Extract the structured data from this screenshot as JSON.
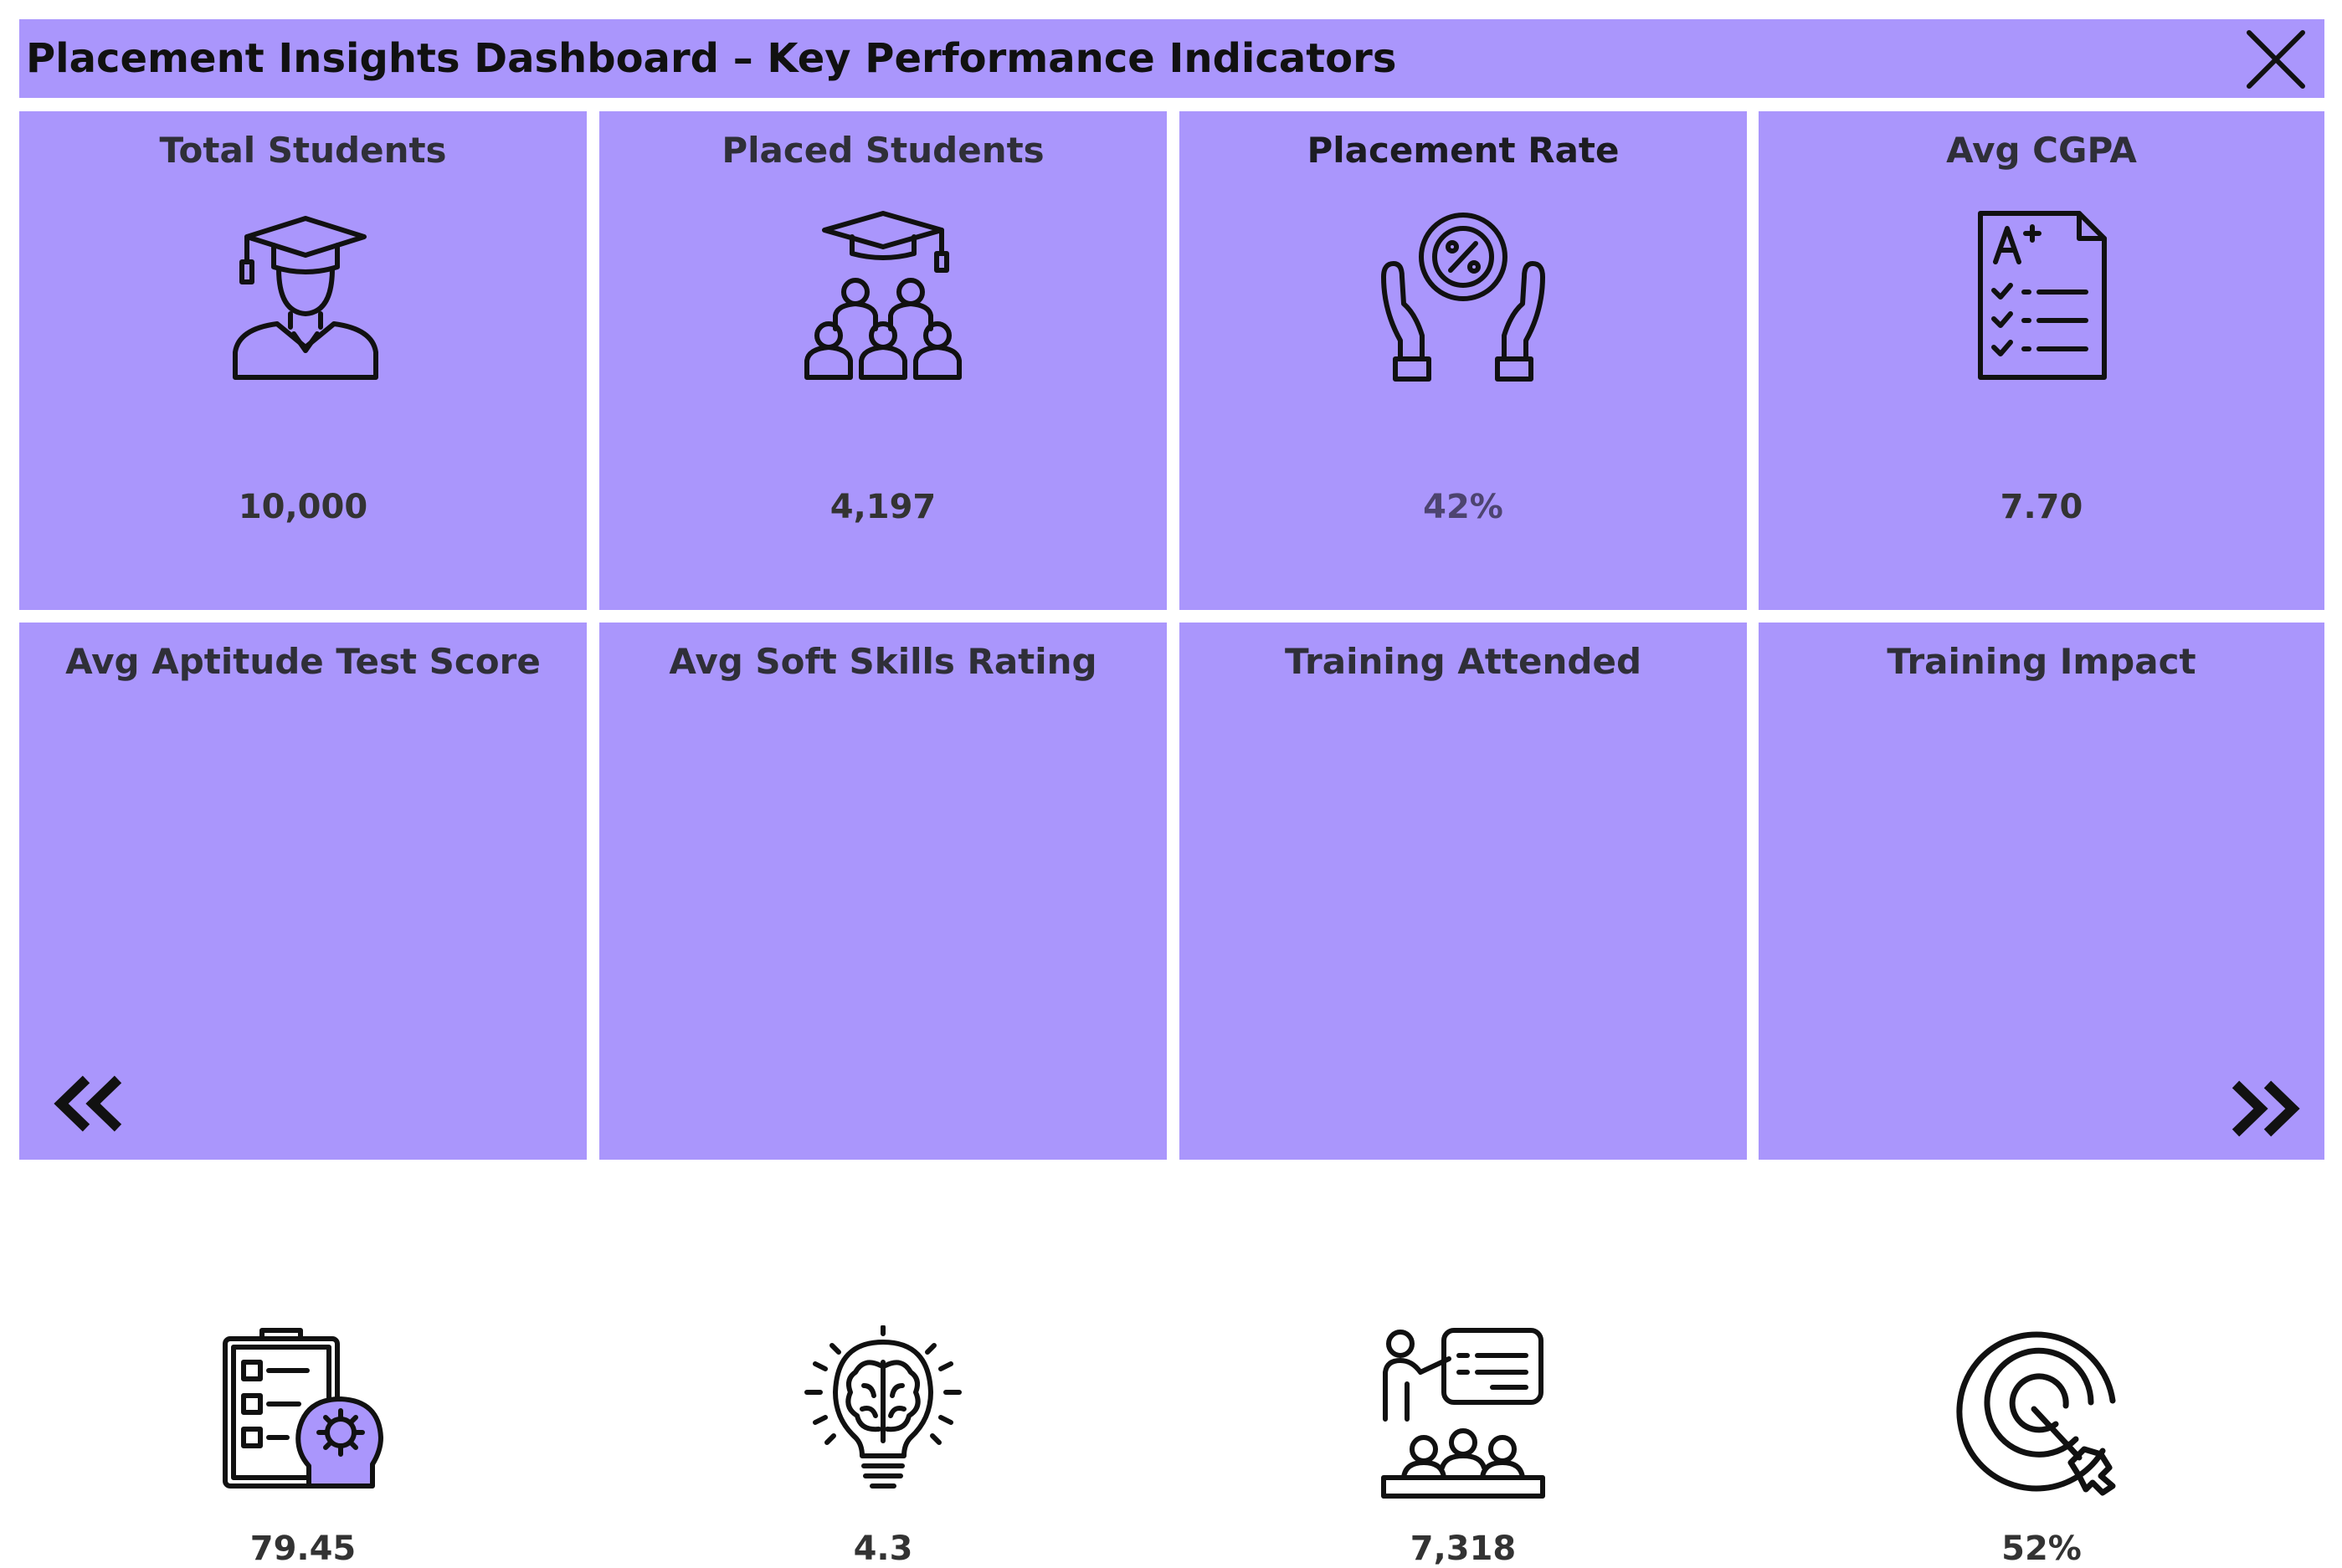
{
  "header": {
    "title": "Placement Insights Dashboard – Key Performance Indicators"
  },
  "colors": {
    "tile_bg": "#aa96fc",
    "text": "#2f2f38",
    "icon": "#111111"
  },
  "kpis": [
    {
      "title": "Total Students",
      "value": "10,000",
      "icon": "graduate-student-icon"
    },
    {
      "title": "Placed Students",
      "value": "4,197",
      "icon": "group-graduates-icon"
    },
    {
      "title": "Placement Rate",
      "value": "42%",
      "icon": "hands-percent-icon"
    },
    {
      "title": "Avg CGPA",
      "value": "7.70",
      "icon": "grade-document-icon"
    },
    {
      "title": "Avg Aptitude Test Score",
      "value": "79.45",
      "icon": "clipboard-head-gear-icon"
    },
    {
      "title": "Avg Soft Skills Rating",
      "value": "4.3",
      "icon": "brain-bulb-icon"
    },
    {
      "title": "Training Attended",
      "value": "7,318",
      "icon": "training-presentation-icon"
    },
    {
      "title": "Training Impact",
      "value": "52%",
      "icon": "target-icon"
    }
  ],
  "nav": {
    "prev_icon": "double-chevron-left-icon",
    "next_icon": "double-chevron-right-icon"
  }
}
